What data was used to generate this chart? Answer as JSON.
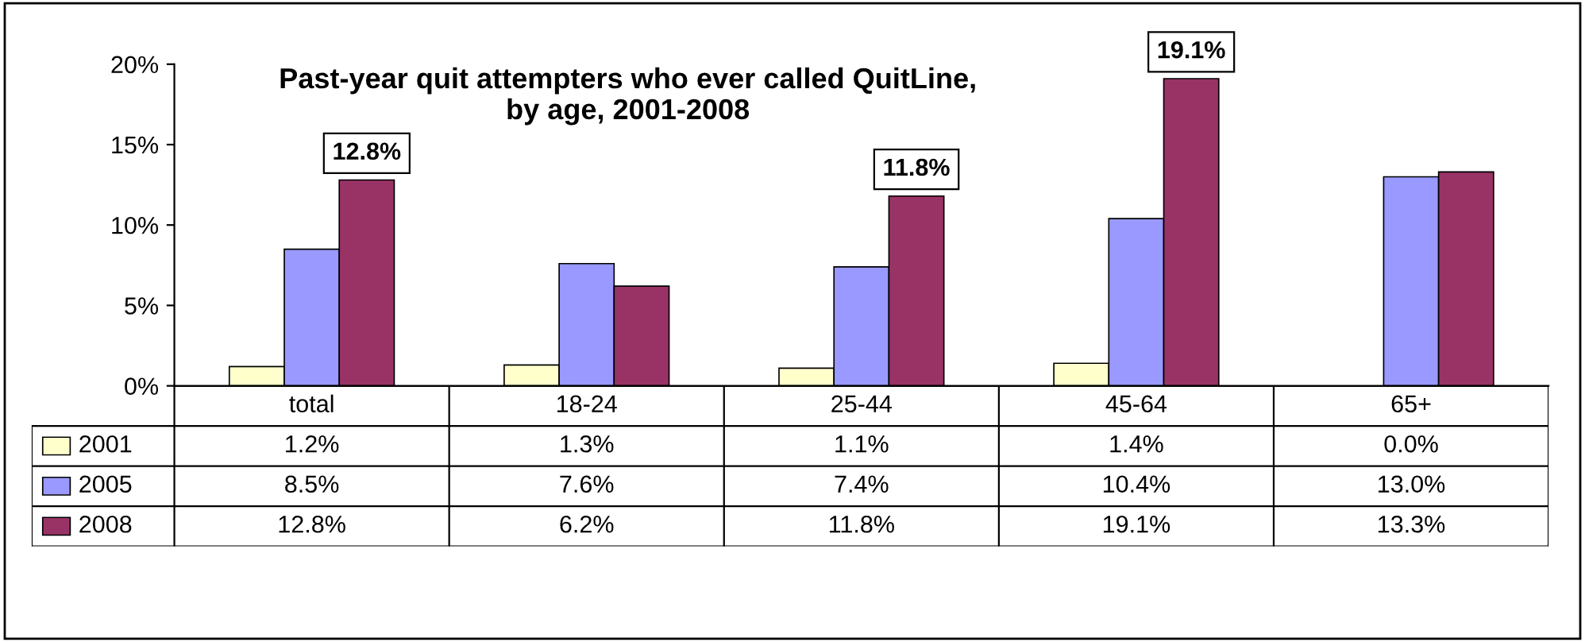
{
  "chart_data": {
    "type": "bar",
    "title": "Past-year quit attempters who ever called QuitLine,\nby age, 2001-2008",
    "categories": [
      "total",
      "18-24",
      "25-44",
      "45-64",
      "65+"
    ],
    "series": [
      {
        "name": "2001",
        "color": "#ffffcc",
        "values": [
          1.2,
          1.3,
          1.1,
          1.4,
          0.0
        ],
        "value_labels": [
          "1.2%",
          "1.3%",
          "1.1%",
          "1.4%",
          "0.0%"
        ]
      },
      {
        "name": "2005",
        "color": "#9999ff",
        "values": [
          8.5,
          7.6,
          7.4,
          10.4,
          13.0
        ],
        "value_labels": [
          "8.5%",
          "7.6%",
          "7.4%",
          "10.4%",
          "13.0%"
        ]
      },
      {
        "name": "2008",
        "color": "#993366",
        "values": [
          12.8,
          6.2,
          11.8,
          19.1,
          13.3
        ],
        "value_labels": [
          "12.8%",
          "6.2%",
          "11.8%",
          "19.1%",
          "13.3%"
        ]
      }
    ],
    "ylim": [
      0,
      20
    ],
    "yticks": [
      {
        "value": 0,
        "label": "0%"
      },
      {
        "value": 5,
        "label": "5%"
      },
      {
        "value": 10,
        "label": "10%"
      },
      {
        "value": 15,
        "label": "15%"
      },
      {
        "value": 20,
        "label": "20%"
      }
    ],
    "annotations": [
      "12.8%",
      "11.8%",
      "19.1%"
    ],
    "grid": false,
    "legend": "left",
    "data_labels": true
  }
}
